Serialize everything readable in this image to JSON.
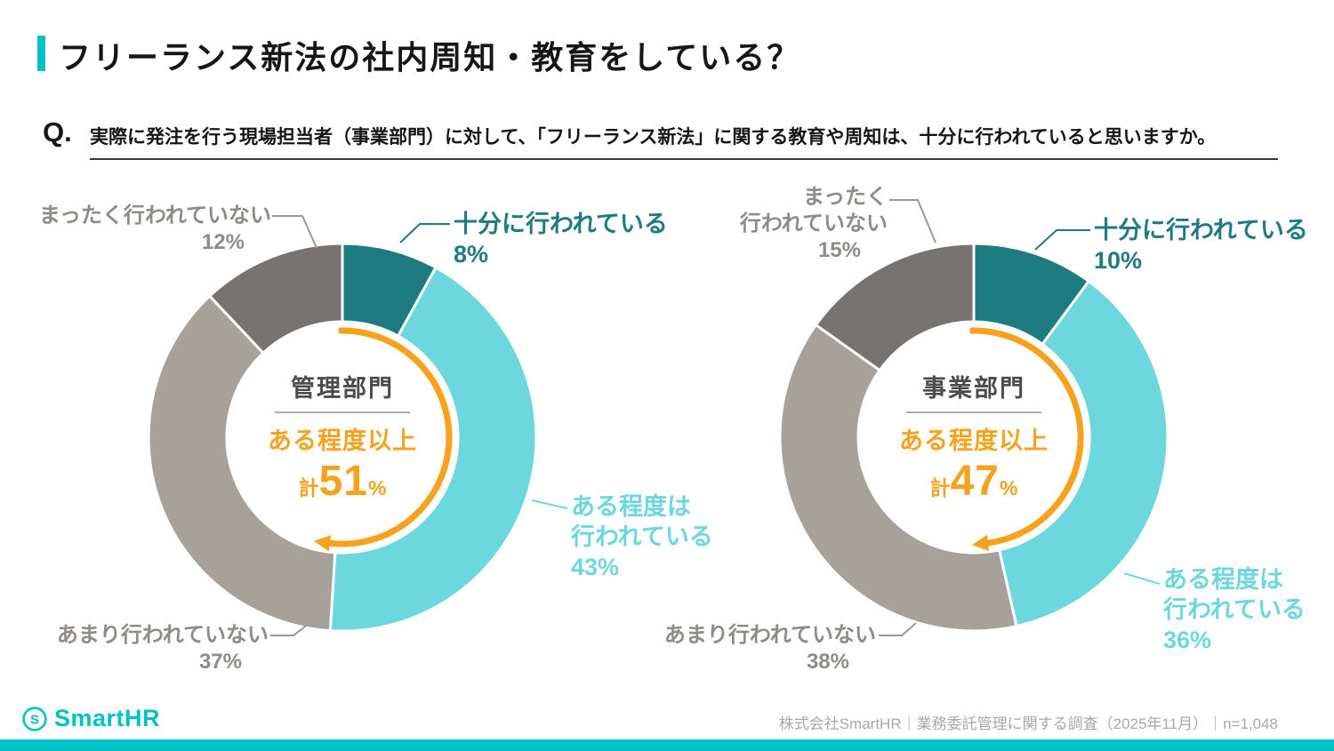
{
  "header": {
    "title": "フリーランス新法の社内周知・教育をしている？",
    "q_mark": "Q.",
    "question": "実際に発注を行う現場担当者（事業部門）に対して、「フリーランス新法」に関する教育や周知は、十分に行われていると思いますか。"
  },
  "colors": {
    "brand_teal": "#00c0c8",
    "segment_sufficient": "#1e7b80",
    "segment_somewhat": "#6cd7dc",
    "segment_not_much": "#a7a19b",
    "segment_not_at_all": "#767370",
    "accent_orange": "#f7a11c",
    "gray_label_text": "#8f8c88"
  },
  "chart_data": [
    {
      "type": "pie",
      "style": "donut",
      "group": "管理部門",
      "unit": "%",
      "center": {
        "group_label": "管理部門",
        "summary_label": "ある程度以上",
        "total_prefix": "計",
        "total_value": 51,
        "total_unit": "%"
      },
      "segments": [
        {
          "key": "sufficient",
          "label": "十分に行われている",
          "value": 8,
          "color": "#1e7b80"
        },
        {
          "key": "somewhat",
          "label": "ある程度は行われている",
          "value": 43,
          "color": "#6cd7dc"
        },
        {
          "key": "not_much",
          "label": "あまり行われていない",
          "value": 37,
          "color": "#a7a19b"
        },
        {
          "key": "not_at_all",
          "label": "まったく行われていない",
          "value": 12,
          "color": "#767370"
        }
      ],
      "callouts": {
        "sufficient": [
          "十分に行われている",
          "8%"
        ],
        "somewhat": [
          "ある程度は",
          "行われている",
          "43%"
        ],
        "not_much": [
          "あまり行われていない",
          "37%"
        ],
        "not_at_all": [
          "まったく行われていない",
          "12%"
        ]
      }
    },
    {
      "type": "pie",
      "style": "donut",
      "group": "事業部門",
      "unit": "%",
      "center": {
        "group_label": "事業部門",
        "summary_label": "ある程度以上",
        "total_prefix": "計",
        "total_value": 47,
        "total_unit": "%"
      },
      "segments": [
        {
          "key": "sufficient",
          "label": "十分に行われている",
          "value": 10,
          "color": "#1e7b80"
        },
        {
          "key": "somewhat",
          "label": "ある程度は行われている",
          "value": 36,
          "color": "#6cd7dc"
        },
        {
          "key": "not_much",
          "label": "あまり行われていない",
          "value": 38,
          "color": "#a7a19b"
        },
        {
          "key": "not_at_all",
          "label": "まったく行われていない",
          "value": 15,
          "color": "#767370"
        }
      ],
      "callouts": {
        "sufficient": [
          "十分に行われている",
          "10%"
        ],
        "somewhat": [
          "ある程度は",
          "行われている",
          "36%"
        ],
        "not_much": [
          "あまり行われていない",
          "38%"
        ],
        "not_at_all": [
          "まったく",
          "行われていない",
          "15%"
        ]
      }
    }
  ],
  "footer": {
    "logo_text": "SmartHR",
    "source": "株式会社SmartHR｜業務委託管理に関する調査（2025年11月）｜n=1,048"
  }
}
